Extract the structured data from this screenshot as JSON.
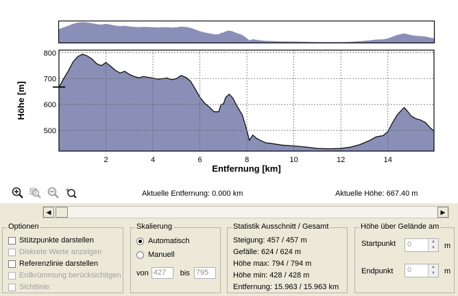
{
  "chart_data": {
    "type": "area",
    "xlabel": "Entfernung [km]",
    "ylabel": "Höhe [m]",
    "xlim": [
      0,
      15.963
    ],
    "ylim": [
      420,
      810
    ],
    "xticks": [
      2,
      4,
      6,
      8,
      10,
      12,
      14
    ],
    "yticks": [
      500,
      600,
      700,
      800
    ],
    "grid": true,
    "fill_color": "#8a8fb8",
    "reference_height": 667.4,
    "profile": [
      [
        0.0,
        667
      ],
      [
        0.2,
        700
      ],
      [
        0.4,
        730
      ],
      [
        0.6,
        765
      ],
      [
        0.8,
        785
      ],
      [
        1.0,
        794
      ],
      [
        1.2,
        788
      ],
      [
        1.4,
        776
      ],
      [
        1.6,
        758
      ],
      [
        1.8,
        750
      ],
      [
        2.0,
        762
      ],
      [
        2.2,
        748
      ],
      [
        2.4,
        732
      ],
      [
        2.6,
        722
      ],
      [
        2.8,
        728
      ],
      [
        3.0,
        716
      ],
      [
        3.2,
        708
      ],
      [
        3.4,
        703
      ],
      [
        3.6,
        708
      ],
      [
        3.8,
        705
      ],
      [
        4.0,
        702
      ],
      [
        4.2,
        698
      ],
      [
        4.4,
        700
      ],
      [
        4.6,
        702
      ],
      [
        4.8,
        696
      ],
      [
        5.0,
        700
      ],
      [
        5.2,
        712
      ],
      [
        5.4,
        705
      ],
      [
        5.6,
        690
      ],
      [
        5.8,
        660
      ],
      [
        6.0,
        628
      ],
      [
        6.2,
        605
      ],
      [
        6.4,
        590
      ],
      [
        6.6,
        572
      ],
      [
        6.8,
        572
      ],
      [
        6.9,
        600
      ],
      [
        7.0,
        602
      ],
      [
        7.1,
        628
      ],
      [
        7.25,
        640
      ],
      [
        7.4,
        625
      ],
      [
        7.6,
        590
      ],
      [
        7.8,
        560
      ],
      [
        8.0,
        500
      ],
      [
        8.1,
        462
      ],
      [
        8.25,
        482
      ],
      [
        8.4,
        470
      ],
      [
        8.6,
        460
      ],
      [
        8.8,
        452
      ],
      [
        9.0,
        450
      ],
      [
        9.5,
        443
      ],
      [
        10.0,
        440
      ],
      [
        10.5,
        436
      ],
      [
        11.0,
        430
      ],
      [
        11.5,
        429
      ],
      [
        12.0,
        430
      ],
      [
        12.4,
        435
      ],
      [
        12.8,
        445
      ],
      [
        13.2,
        460
      ],
      [
        13.5,
        475
      ],
      [
        13.8,
        480
      ],
      [
        14.0,
        495
      ],
      [
        14.2,
        530
      ],
      [
        14.4,
        560
      ],
      [
        14.6,
        580
      ],
      [
        14.7,
        588
      ],
      [
        14.8,
        578
      ],
      [
        15.0,
        555
      ],
      [
        15.2,
        545
      ],
      [
        15.4,
        540
      ],
      [
        15.6,
        530
      ],
      [
        15.8,
        510
      ],
      [
        15.963,
        498
      ]
    ]
  },
  "toolbar": {
    "icons": [
      "zoom-in-icon",
      "zoom-region-icon",
      "zoom-out-icon",
      "zoom-reset-icon"
    ]
  },
  "status": {
    "current_distance": "Aktuelle Entfernung: 0.000 km",
    "current_height": "Aktuelle Höhe: 667.40 m"
  },
  "options": {
    "title": "Optionen",
    "items": [
      {
        "label": "Stützpunkte darstellen",
        "enabled": true
      },
      {
        "label": "Diskrete Werte anzeigen",
        "enabled": false
      },
      {
        "label": "Referenzlinie darstellen",
        "enabled": true
      },
      {
        "label": "Erdkrümmung berücksichtigen",
        "enabled": false
      },
      {
        "label": "Sichtlinie",
        "enabled": false
      }
    ]
  },
  "scaling": {
    "title": "Skalierung",
    "auto_label": "Automatisch",
    "manual_label": "Manuell",
    "from_label": "von",
    "from_value": "427",
    "to_label": "bis",
    "to_value": "795"
  },
  "statistics": {
    "title": "Statistik  Ausschnitt / Gesamt",
    "rows": [
      "Steigung: 457 / 457 m",
      "Gefälle: 624 / 624 m",
      "Höhe max: 794 / 794 m",
      "Höhe min: 428 / 428 m",
      "Entfernung: 15.963 / 15.963 km"
    ]
  },
  "height_above_ground": {
    "title": "Höhe über Gelände am",
    "start_label": "Startpunkt",
    "start_value": "0",
    "end_label": "Endpunkt",
    "end_value": "0",
    "unit": "m"
  }
}
